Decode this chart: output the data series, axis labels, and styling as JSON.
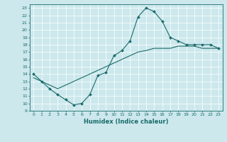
{
  "xlabel": "Humidex (Indice chaleur)",
  "ylabel": "",
  "background_color": "#cce8ec",
  "line_color": "#1a6b6b",
  "xlim": [
    -0.5,
    23.5
  ],
  "ylim": [
    9,
    23.5
  ],
  "xticks": [
    0,
    1,
    2,
    3,
    4,
    5,
    6,
    7,
    8,
    9,
    10,
    11,
    12,
    13,
    14,
    15,
    16,
    17,
    18,
    19,
    20,
    21,
    22,
    23
  ],
  "yticks": [
    9,
    10,
    11,
    12,
    13,
    14,
    15,
    16,
    17,
    18,
    19,
    20,
    21,
    22,
    23
  ],
  "curve1_x": [
    0,
    1,
    2,
    3,
    4,
    5,
    6,
    7,
    8,
    9,
    10,
    11,
    12,
    13,
    14,
    15,
    16,
    17,
    18,
    19,
    20,
    21,
    22,
    23
  ],
  "curve1_y": [
    14.0,
    13.0,
    12.0,
    11.2,
    10.5,
    9.8,
    10.0,
    11.2,
    13.8,
    14.2,
    16.5,
    17.2,
    18.5,
    21.8,
    23.0,
    22.5,
    21.2,
    19.0,
    18.5,
    18.0,
    18.0,
    18.0,
    18.0,
    17.5
  ],
  "curve2_x": [
    0,
    1,
    2,
    3,
    4,
    5,
    6,
    7,
    8,
    9,
    10,
    11,
    12,
    13,
    14,
    15,
    16,
    17,
    18,
    19,
    20,
    21,
    22,
    23
  ],
  "curve2_y": [
    13.5,
    13.0,
    12.5,
    12.0,
    12.5,
    13.0,
    13.5,
    14.0,
    14.5,
    15.0,
    15.5,
    16.0,
    16.5,
    17.0,
    17.2,
    17.5,
    17.5,
    17.5,
    17.8,
    17.8,
    17.8,
    17.5,
    17.5,
    17.5
  ]
}
